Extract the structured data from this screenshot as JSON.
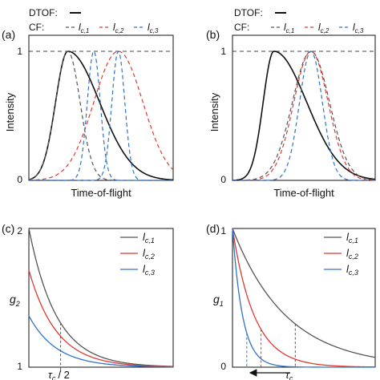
{
  "figure": {
    "colors": {
      "dtof": "#111111",
      "lc1": "#555555",
      "lc2": "#e0392f",
      "lc3": "#2f73c8"
    },
    "top_legend": {
      "dtof_label": "DTOF:",
      "cf_label": "CF:",
      "entries": [
        "l",
        "l",
        "l"
      ],
      "subs": [
        "c,1",
        "c,2",
        "c,3"
      ]
    },
    "bottom_legend": {
      "entries": [
        "l",
        "l",
        "l"
      ],
      "subs": [
        "c,1",
        "c,2",
        "c,3"
      ]
    }
  },
  "chart_data": [
    {
      "panel": "(a)",
      "type": "line",
      "xlabel": "Time-of-flight",
      "ylabel": "Intensity",
      "yticks": [
        "0",
        "1"
      ],
      "ylim": [
        0,
        1
      ],
      "reference_line": 1,
      "series": [
        {
          "key": "dtof",
          "style": "solid",
          "peak": 0.27,
          "sigma_left": 0.085,
          "sigma_right": 0.22
        },
        {
          "key": "lc1",
          "style": "dashed",
          "peak": 0.27,
          "sigma": 0.085
        },
        {
          "key": "lc2",
          "style": "dashed",
          "peak": 0.62,
          "sigma": 0.17
        },
        {
          "key": "lc3",
          "style": "dashed",
          "peak": 0.45,
          "sigma": 0.045
        },
        {
          "key": "lc3",
          "style": "dashed",
          "peak": 0.62,
          "sigma": 0.045
        }
      ]
    },
    {
      "panel": "(b)",
      "type": "line",
      "xlabel": "Time-of-flight",
      "ylabel": "Intensity",
      "yticks": [
        "0",
        "1"
      ],
      "ylim": [
        0,
        1
      ],
      "reference_line": 1,
      "series": [
        {
          "key": "dtof",
          "style": "solid",
          "peak": 0.29,
          "sigma_left": 0.075,
          "sigma_right": 0.23
        },
        {
          "key": "lc1",
          "style": "dashed",
          "peak": 0.55,
          "sigma": 0.13
        },
        {
          "key": "lc2",
          "style": "dashed",
          "peak": 0.55,
          "sigma": 0.12
        },
        {
          "key": "lc3",
          "style": "dashed",
          "peak": 0.55,
          "sigma": 0.08
        }
      ]
    },
    {
      "panel": "(c)",
      "type": "line",
      "ylabel": "g",
      "ylabel_sub": "2",
      "yticks": [
        "1",
        "2"
      ],
      "ylim": [
        1,
        2
      ],
      "xlim": [
        0,
        1
      ],
      "annotation": "τ",
      "annotation_sub": "c",
      "annotation_tail": "/ 2",
      "marker_x": 0.22,
      "series": [
        {
          "key": "lc1",
          "start": 2.0,
          "decay": 5.2
        },
        {
          "key": "lc2",
          "start": 1.7,
          "decay": 5.2
        },
        {
          "key": "lc3",
          "start": 1.37,
          "decay": 5.2
        }
      ]
    },
    {
      "panel": "(d)",
      "type": "line",
      "ylabel": "g",
      "ylabel_sub": "1",
      "yticks": [
        "0",
        "1"
      ],
      "ylim": [
        0,
        1
      ],
      "xlim": [
        0,
        1
      ],
      "annotation": "τ",
      "annotation_sub": "c",
      "series": [
        {
          "key": "lc1",
          "start": 1.0,
          "decay": 2.65,
          "marker_x": 0.44
        },
        {
          "key": "lc2",
          "start": 1.0,
          "decay": 6.5,
          "marker_x": 0.2
        },
        {
          "key": "lc3",
          "start": 1.0,
          "decay": 14.0,
          "marker_x": 0.1
        }
      ]
    }
  ]
}
